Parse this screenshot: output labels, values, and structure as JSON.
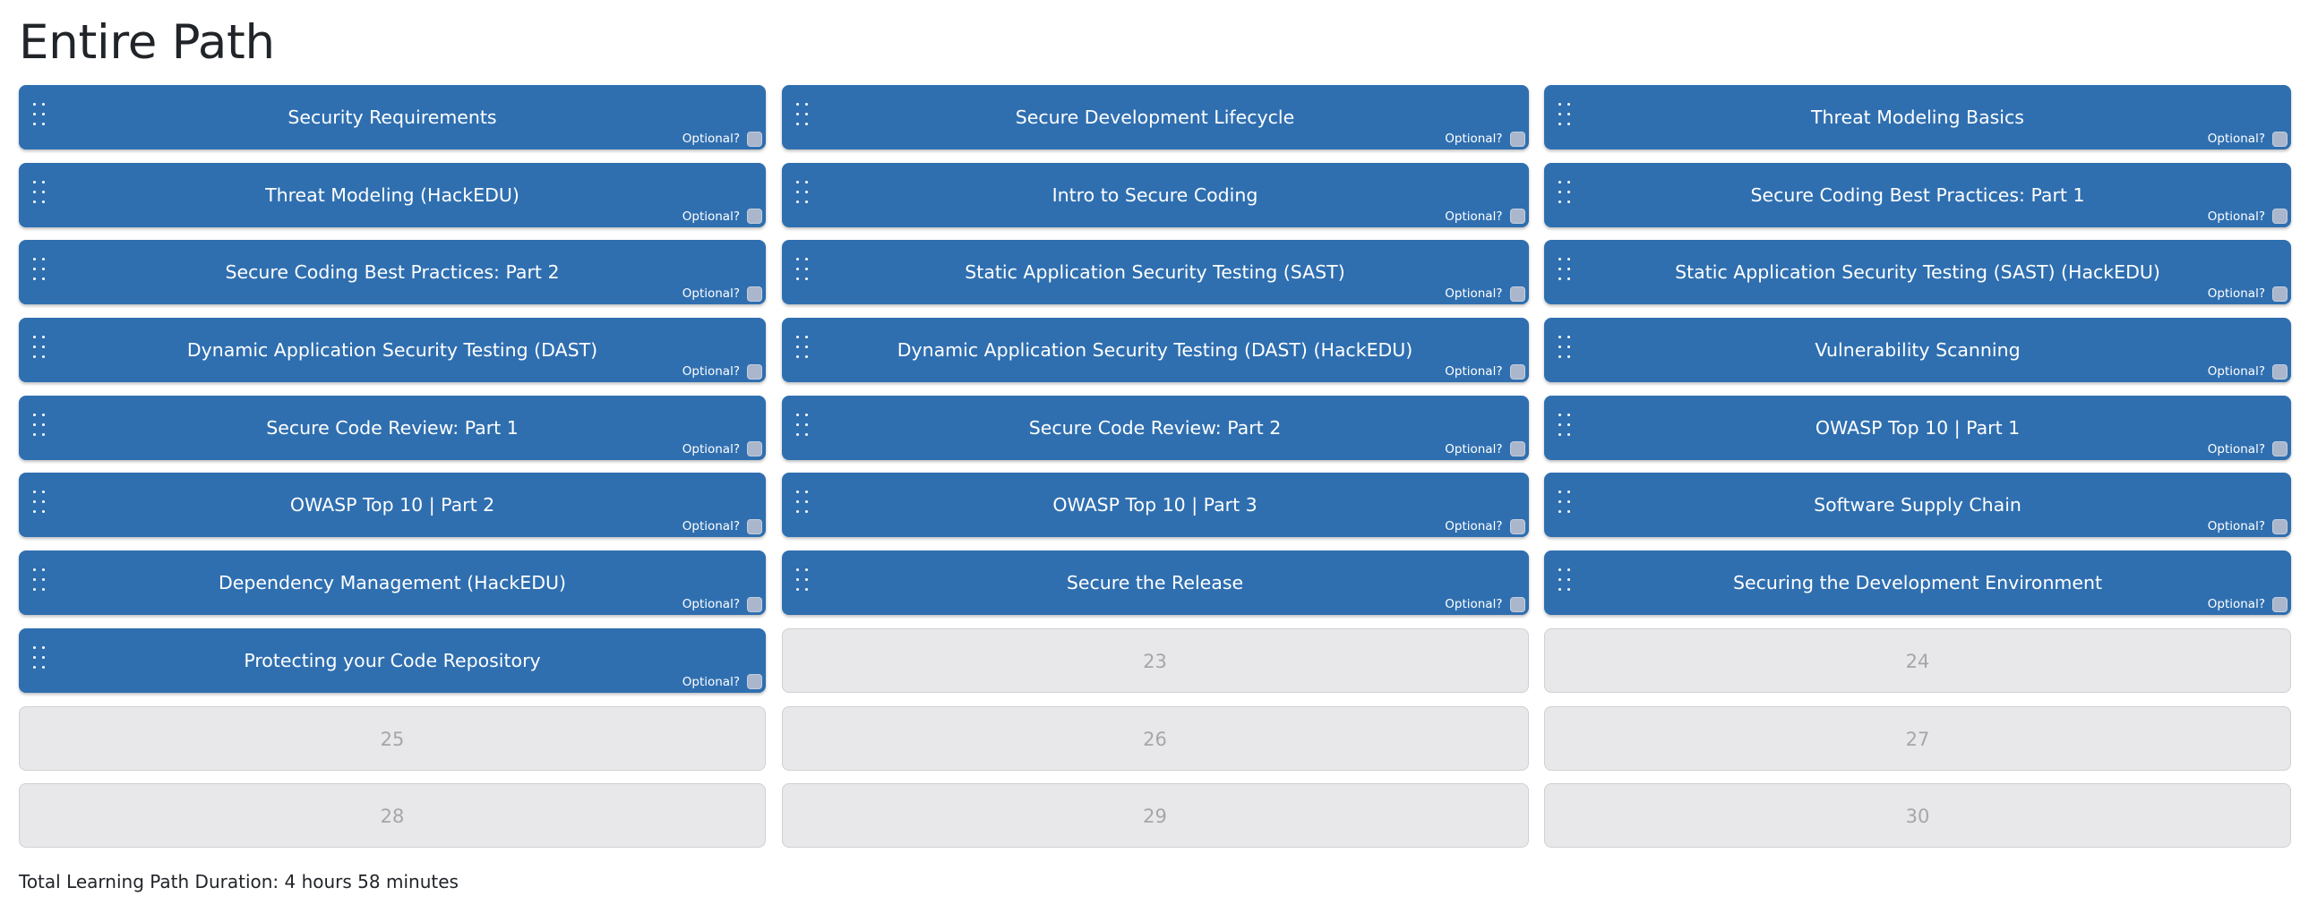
{
  "page_title": "Entire Path",
  "optional_label": "Optional?",
  "tiles": [
    {
      "type": "course",
      "label": "Security Requirements"
    },
    {
      "type": "course",
      "label": "Secure Development Lifecycle"
    },
    {
      "type": "course",
      "label": "Threat Modeling Basics"
    },
    {
      "type": "course",
      "label": "Threat Modeling (HackEDU)"
    },
    {
      "type": "course",
      "label": "Intro to Secure Coding"
    },
    {
      "type": "course",
      "label": "Secure Coding Best Practices: Part 1"
    },
    {
      "type": "course",
      "label": "Secure Coding Best Practices: Part 2"
    },
    {
      "type": "course",
      "label": "Static Application Security Testing (SAST)"
    },
    {
      "type": "course",
      "label": "Static Application Security Testing (SAST) (HackEDU)"
    },
    {
      "type": "course",
      "label": "Dynamic Application Security Testing (DAST)"
    },
    {
      "type": "course",
      "label": "Dynamic Application Security Testing (DAST) (HackEDU)"
    },
    {
      "type": "course",
      "label": "Vulnerability Scanning"
    },
    {
      "type": "course",
      "label": "Secure Code Review: Part 1"
    },
    {
      "type": "course",
      "label": "Secure Code Review: Part 2"
    },
    {
      "type": "course",
      "label": "OWASP Top 10 | Part 1"
    },
    {
      "type": "course",
      "label": "OWASP Top 10 | Part 2"
    },
    {
      "type": "course",
      "label": "OWASP Top 10 | Part 3"
    },
    {
      "type": "course",
      "label": "Software Supply Chain"
    },
    {
      "type": "course",
      "label": "Dependency Management (HackEDU)"
    },
    {
      "type": "course",
      "label": "Secure the Release"
    },
    {
      "type": "course",
      "label": "Securing the Development Environment"
    },
    {
      "type": "course",
      "label": "Protecting your Code Repository"
    },
    {
      "type": "slot",
      "label": "23"
    },
    {
      "type": "slot",
      "label": "24"
    },
    {
      "type": "slot",
      "label": "25"
    },
    {
      "type": "slot",
      "label": "26"
    },
    {
      "type": "slot",
      "label": "27"
    },
    {
      "type": "slot",
      "label": "28"
    },
    {
      "type": "slot",
      "label": "29"
    },
    {
      "type": "slot",
      "label": "30"
    }
  ],
  "total_duration": "Total Learning Path Duration: 4 hours 58 minutes",
  "colors": {
    "tile_filled": "#2f6fb0",
    "tile_empty": "#e8e8ea",
    "empty_text": "#a4a6aa"
  },
  "icons": {
    "drag_handle": "drag-handle-icon"
  }
}
